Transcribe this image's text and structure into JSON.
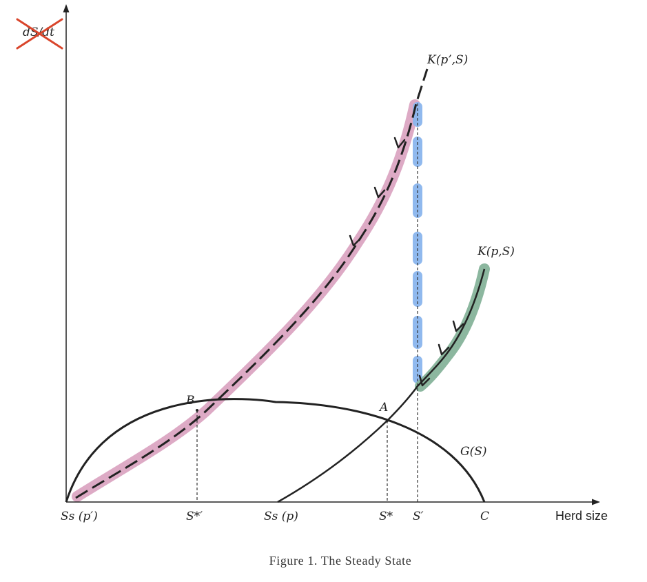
{
  "figure": {
    "caption": "Figure 1. The Steady State",
    "y_axis_label": "dS/dt",
    "x_axis_label": "Herd size"
  },
  "curves": {
    "k_p_prime": "K(p’,S)",
    "k_p": "K(p,S)",
    "g": "G(S)"
  },
  "points": {
    "a": "A",
    "b": "B"
  },
  "ticks": {
    "ss_p_prime": "Ss (p′)",
    "s_star_prime": "S*′",
    "ss_p": "Ss (p)",
    "s_star": "S*",
    "s_prime": "S′",
    "c": "C"
  },
  "colors": {
    "pink_highlight": "#d9a1bf",
    "blue_highlight": "#8bb6ee",
    "green_highlight": "#86b39a",
    "cross_out": "#d9452b",
    "ink": "#222222"
  }
}
